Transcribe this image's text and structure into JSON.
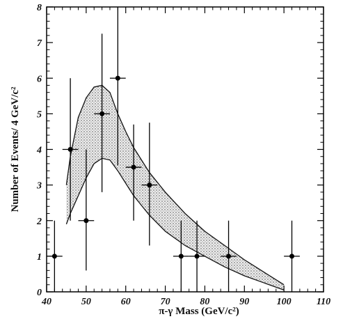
{
  "chart_data": {
    "type": "scatter",
    "title": "",
    "xlabel": "π-γ Mass (GeV/c²)",
    "ylabel": "Number of Events/ 4 GeV/c²",
    "xlim": [
      40,
      110
    ],
    "ylim": [
      0,
      8
    ],
    "x_ticks": [
      40,
      50,
      60,
      70,
      80,
      90,
      100,
      110
    ],
    "y_ticks": [
      0,
      1,
      2,
      3,
      4,
      5,
      6,
      7,
      8
    ],
    "grid": false,
    "series": [
      {
        "kind": "points-with-error-bars",
        "x_halfwidth": 2,
        "points": [
          {
            "x": 42,
            "y": 1,
            "yerr_low": 1,
            "yerr_high": 1
          },
          {
            "x": 46,
            "y": 4,
            "yerr_low": 2,
            "yerr_high": 2
          },
          {
            "x": 50,
            "y": 2,
            "yerr_low": 1.4,
            "yerr_high": 2
          },
          {
            "x": 54,
            "y": 5,
            "yerr_low": 2.2,
            "yerr_high": 2.25
          },
          {
            "x": 58,
            "y": 6,
            "yerr_low": 2.45,
            "yerr_high": 2.45
          },
          {
            "x": 62,
            "y": 3.5,
            "yerr_low": 1.5,
            "yerr_high": 1.2
          },
          {
            "x": 66,
            "y": 3,
            "yerr_low": 1.7,
            "yerr_high": 1.75
          },
          {
            "x": 74,
            "y": 1,
            "yerr_low": 1,
            "yerr_high": 1
          },
          {
            "x": 78,
            "y": 1,
            "yerr_low": 1,
            "yerr_high": 1
          },
          {
            "x": 86,
            "y": 1,
            "yerr_low": 1,
            "yerr_high": 1
          },
          {
            "x": 102,
            "y": 1,
            "yerr_low": 1,
            "yerr_high": 1
          }
        ]
      },
      {
        "kind": "band",
        "upper": [
          [
            45,
            3.0
          ],
          [
            46,
            3.8
          ],
          [
            48,
            4.9
          ],
          [
            50,
            5.45
          ],
          [
            52,
            5.75
          ],
          [
            54,
            5.8
          ],
          [
            56,
            5.6
          ],
          [
            58,
            5.0
          ],
          [
            60,
            4.5
          ],
          [
            62,
            4.05
          ],
          [
            66,
            3.35
          ],
          [
            70,
            2.8
          ],
          [
            75,
            2.2
          ],
          [
            80,
            1.7
          ],
          [
            85,
            1.3
          ],
          [
            90,
            0.9
          ],
          [
            95,
            0.55
          ],
          [
            100,
            0.2
          ]
        ],
        "lower": [
          [
            45,
            1.9
          ],
          [
            46,
            2.2
          ],
          [
            48,
            2.7
          ],
          [
            50,
            3.2
          ],
          [
            52,
            3.6
          ],
          [
            54,
            3.75
          ],
          [
            56,
            3.7
          ],
          [
            58,
            3.4
          ],
          [
            60,
            3.05
          ],
          [
            62,
            2.7
          ],
          [
            66,
            2.15
          ],
          [
            70,
            1.7
          ],
          [
            75,
            1.3
          ],
          [
            80,
            1.0
          ],
          [
            85,
            0.7
          ],
          [
            90,
            0.45
          ],
          [
            95,
            0.25
          ],
          [
            100,
            0.05
          ]
        ]
      }
    ],
    "colors": {
      "band_fill": "#c4c4c4",
      "band_edge": "#111111",
      "points": "#000000"
    }
  }
}
